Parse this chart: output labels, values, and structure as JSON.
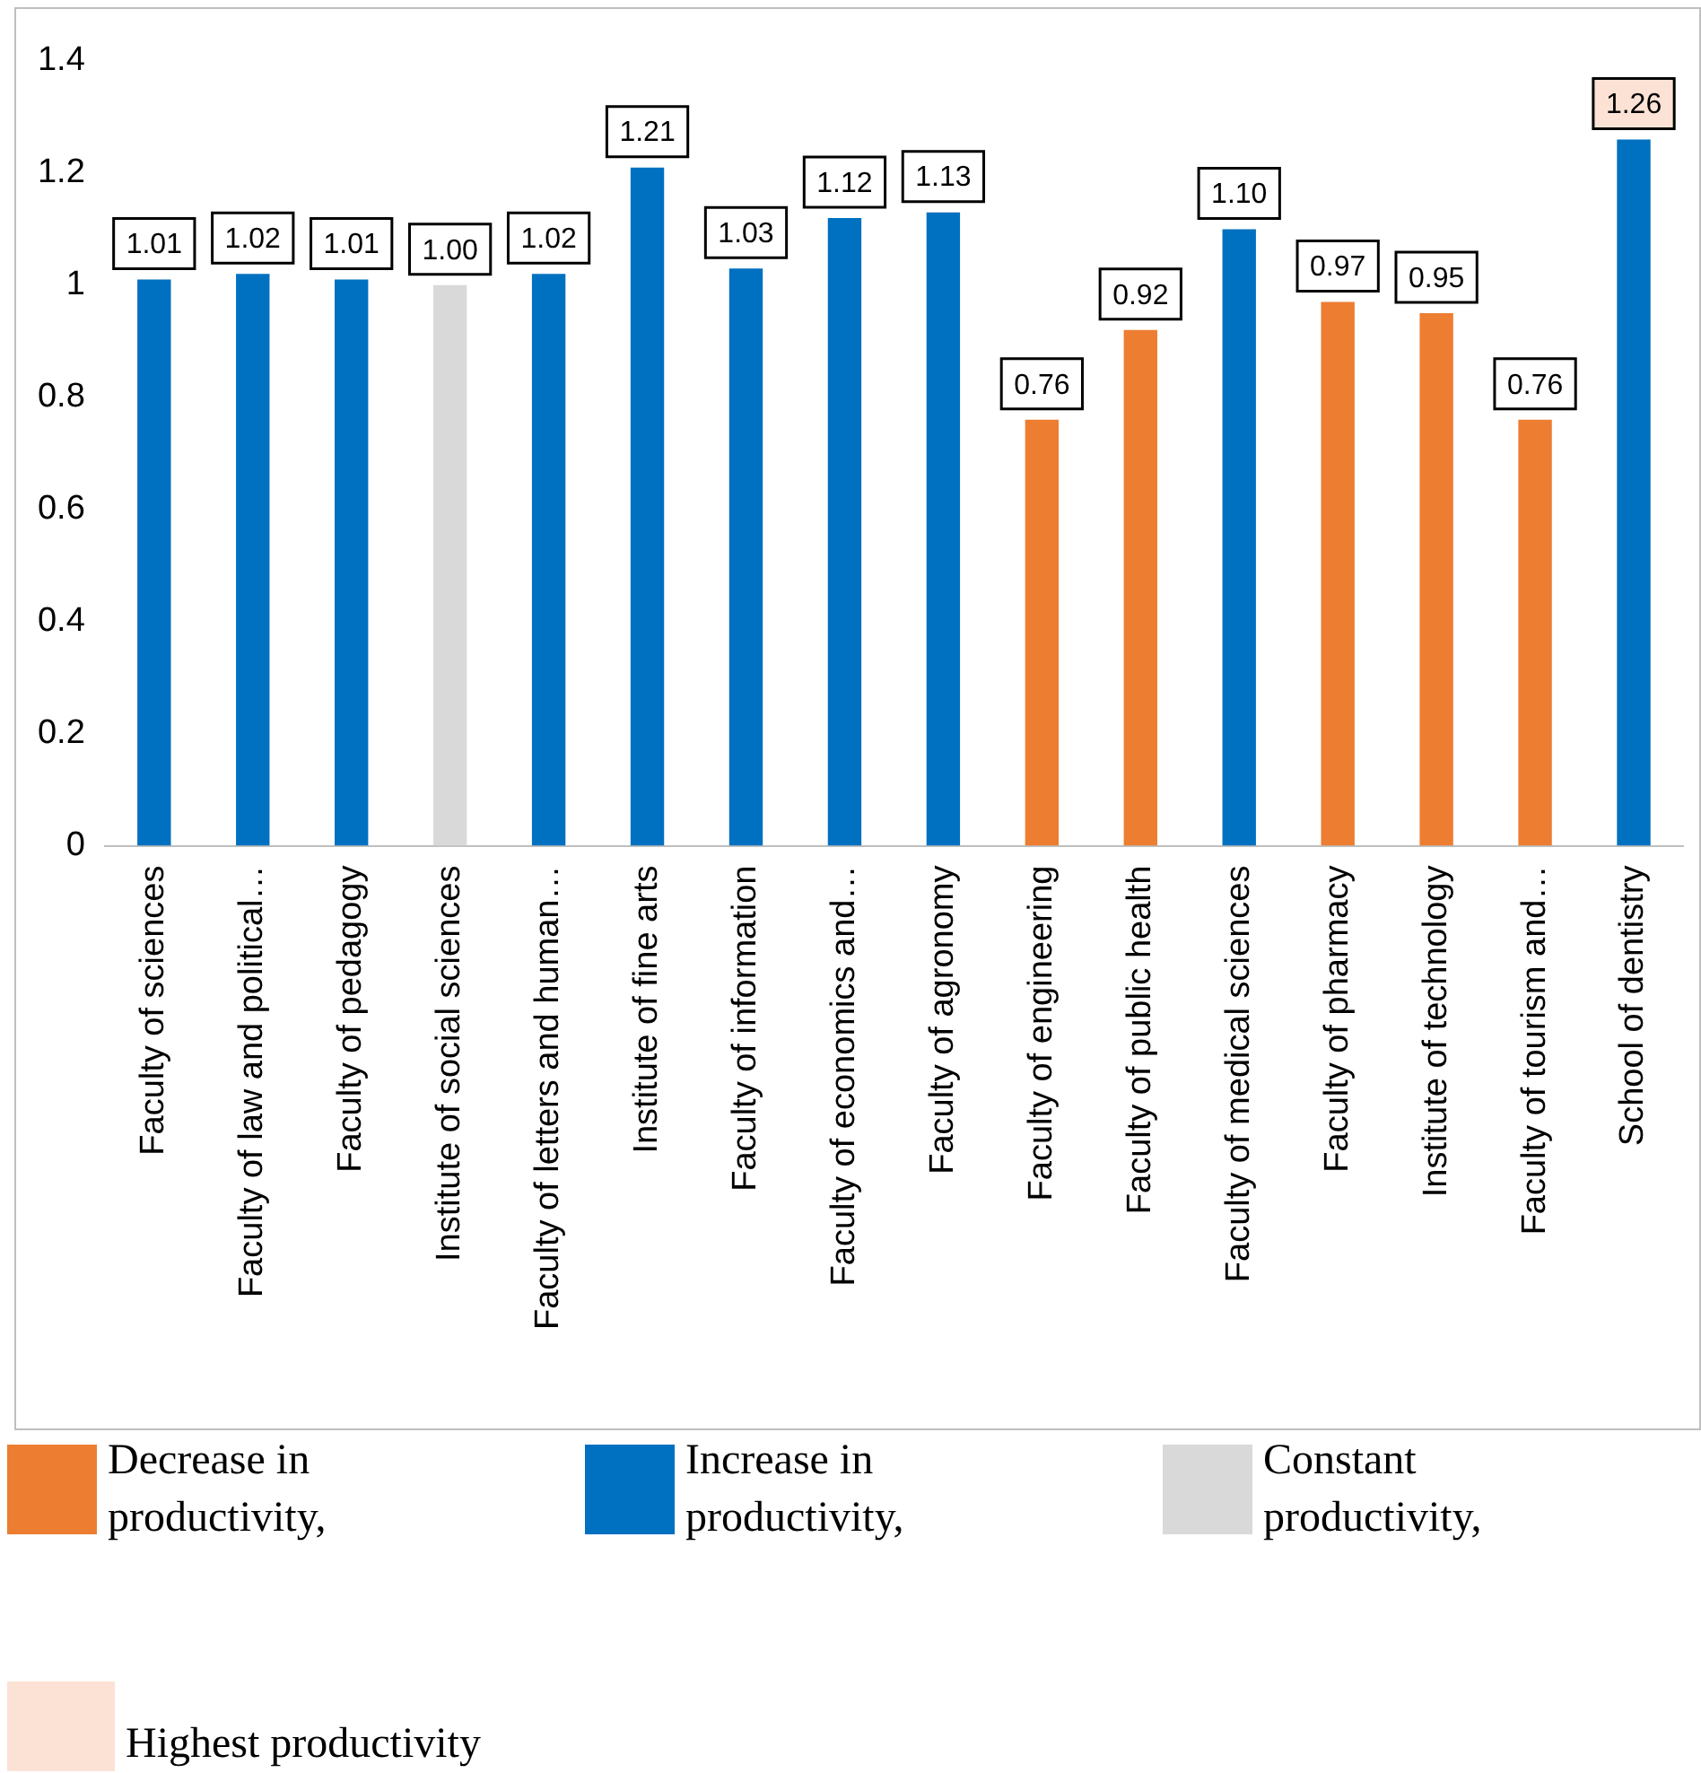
{
  "chart_data": {
    "type": "bar",
    "categories": [
      "Faculty of sciences",
      "Faculty of law and political…",
      "Faculty of pedagogy",
      "Institute of social sciences",
      "Faculty of letters and human…",
      "Institute of fine arts",
      "Faculty of information",
      "Faculty of economics and…",
      "Faculty of agronomy",
      "Faculty of engineering",
      "Faculty of public health",
      "Faculty of medical sciences",
      "Faculty of pharmacy",
      "Institute of technology",
      "Faculty of tourism and…",
      "School of dentistry"
    ],
    "series": [
      {
        "name": "Decrease in productivity,",
        "color": "#ed7d31",
        "values": [
          null,
          null,
          null,
          null,
          null,
          null,
          null,
          null,
          null,
          0.76,
          0.92,
          null,
          0.97,
          0.95,
          0.76,
          null
        ],
        "value_labels": [
          null,
          null,
          null,
          null,
          null,
          null,
          null,
          null,
          null,
          "0.76",
          "0.92",
          null,
          "0.97",
          "0.95",
          "0.76",
          null
        ]
      },
      {
        "name": "Increase in productivity,",
        "color": "#0070c0",
        "values": [
          1.01,
          1.02,
          1.01,
          null,
          1.02,
          1.21,
          1.03,
          1.12,
          1.13,
          null,
          null,
          1.1,
          null,
          null,
          null,
          1.26
        ],
        "value_labels": [
          "1.01",
          "1.02",
          "1.01",
          null,
          "1.02",
          "1.21",
          "1.03",
          "1.12",
          "1.13",
          null,
          null,
          "1.10",
          null,
          null,
          null,
          "1.26"
        ]
      },
      {
        "name": "Constant productivity,",
        "color": "#d9d9d9",
        "values": [
          null,
          null,
          null,
          1.0,
          null,
          null,
          null,
          null,
          null,
          null,
          null,
          null,
          null,
          null,
          null,
          null
        ],
        "value_labels": [
          null,
          null,
          null,
          "1.00",
          null,
          null,
          null,
          null,
          null,
          null,
          null,
          null,
          null,
          null,
          null,
          null
        ]
      }
    ],
    "annotations": [
      "Highest productivity"
    ],
    "ylim": [
      0,
      1.4
    ],
    "yticks": [
      0,
      0.2,
      0.4,
      0.6,
      0.8,
      1,
      1.2,
      1.4
    ],
    "grid": false,
    "legend": "bottom"
  }
}
